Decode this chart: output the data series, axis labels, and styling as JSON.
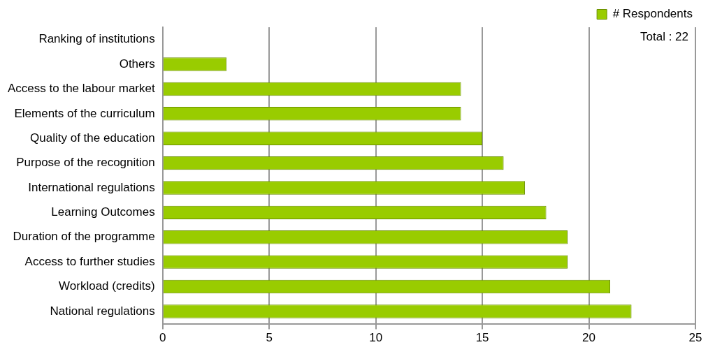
{
  "chart_data": {
    "type": "bar",
    "orientation": "horizontal",
    "categories": [
      "Ranking of institutions",
      "Others",
      "Access to the labour market",
      "Elements of the curriculum",
      "Quality of the education",
      "Purpose of the recognition",
      "International regulations",
      "Learning Outcomes",
      "Duration of the programme",
      "Access to further studies",
      "Workload (credits)",
      "National regulations"
    ],
    "series": [
      {
        "name": "# Respondents",
        "color": "#99cc00",
        "values": [
          0,
          3,
          14,
          14,
          15,
          16,
          17,
          18,
          19,
          19,
          21,
          22
        ]
      }
    ],
    "xlim": [
      0,
      25
    ],
    "xticks": [
      0,
      5,
      10,
      15,
      20,
      25
    ],
    "grid": "x",
    "legend": "top right",
    "annotations": [
      "Total : 22"
    ]
  }
}
